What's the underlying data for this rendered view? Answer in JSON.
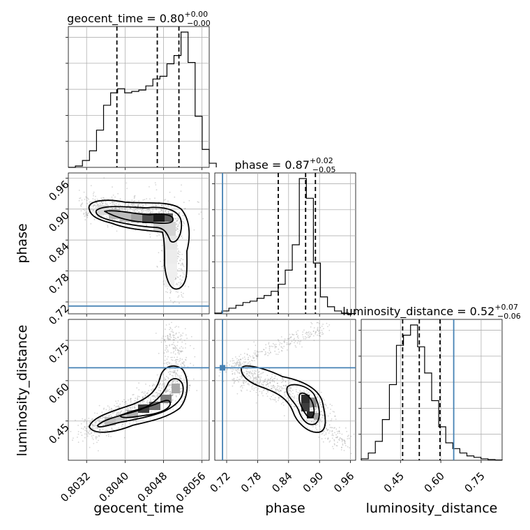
{
  "chart_data": {
    "type": "corner",
    "parameters": [
      "geocent_time",
      "phase",
      "luminosity_distance"
    ],
    "titles": [
      {
        "param": "geocent_time",
        "median": "0.80",
        "plus": "+0.00",
        "minus": "−0.00"
      },
      {
        "param": "phase",
        "median": "0.87",
        "plus": "+0.02",
        "minus": "−0.05"
      },
      {
        "param": "luminosity_distance",
        "median": "0.52",
        "plus": "+0.07",
        "minus": "−0.06"
      }
    ],
    "ranges": {
      "geocent_time": [
        0.80282,
        0.80575
      ],
      "phase": [
        0.697,
        0.97
      ],
      "luminosity_distance": [
        0.304,
        0.828
      ]
    },
    "ticks": {
      "geocent_time": [
        "0.8032",
        "0.8040",
        "0.8048",
        "0.8056"
      ],
      "phase": [
        "0.72",
        "0.78",
        "0.84",
        "0.90",
        "0.96"
      ],
      "luminosity_distance": [
        "0.45",
        "0.60",
        "0.75"
      ]
    },
    "injection": {
      "phase": 0.712,
      "luminosity_distance": 0.648
    },
    "quantiles": {
      "geocent_time": [
        0.80383,
        0.80467,
        0.80512
      ],
      "phase": [
        0.82,
        0.873,
        0.892
      ],
      "luminosity_distance": [
        0.458,
        0.52,
        0.597
      ]
    },
    "hist_geocent_time": {
      "edges_start": 0.80282,
      "bin_width": 0.0001465,
      "counts": [
        0,
        0.01,
        0.05,
        0.12,
        0.27,
        0.45,
        0.54,
        0.57,
        0.54,
        0.55,
        0.56,
        0.59,
        0.64,
        0.66,
        0.75,
        0.81,
        0.98,
        0.76,
        0.37,
        0.13,
        0.03
      ]
    },
    "hist_phase": {
      "edges_start": 0.697,
      "bin_width": 0.01365,
      "counts": [
        0.005,
        0.02,
        0.04,
        0.06,
        0.08,
        0.09,
        0.11,
        0.13,
        0.16,
        0.21,
        0.31,
        0.49,
        0.96,
        0.82,
        0.36,
        0.12,
        0.05,
        0.02,
        0.005,
        0.002
      ]
    },
    "hist_luminosity_distance": {
      "edges_start": 0.304,
      "bin_width": 0.0262,
      "counts": [
        0.01,
        0.05,
        0.13,
        0.28,
        0.52,
        0.79,
        0.86,
        0.93,
        0.78,
        0.6,
        0.41,
        0.23,
        0.12,
        0.08,
        0.05,
        0.03,
        0.02,
        0.01,
        0.005,
        0.002
      ]
    },
    "density_cells": [
      {
        "pair": "geocent_time-phase",
        "x": 0.80342,
        "y": 0.898,
        "w": 0.8
      },
      {
        "pair": "geocent_time-phase",
        "x": 0.80392,
        "y": 0.885,
        "w": 1.0
      },
      {
        "pair": "geocent_time-phase",
        "x": 0.80452,
        "y": 0.88,
        "w": 1.0
      },
      {
        "pair": "geocent_time-phase",
        "x": 0.80492,
        "y": 0.87,
        "w": 1.0
      },
      {
        "pair": "geocent_time-phase",
        "x": 0.80512,
        "y": 0.8,
        "w": 0.7
      },
      {
        "pair": "geocent_time-luminosity_distance",
        "x": 0.80352,
        "y": 0.44,
        "w": 0.9
      },
      {
        "pair": "geocent_time-luminosity_distance",
        "x": 0.80402,
        "y": 0.48,
        "w": 1.0
      },
      {
        "pair": "geocent_time-luminosity_distance",
        "x": 0.80462,
        "y": 0.515,
        "w": 1.0
      },
      {
        "pair": "geocent_time-luminosity_distance",
        "x": 0.80502,
        "y": 0.6,
        "w": 0.8
      },
      {
        "pair": "phase-luminosity_distance",
        "x": 0.76,
        "y": 0.64,
        "w": 0.5
      },
      {
        "pair": "phase-luminosity_distance",
        "x": 0.83,
        "y": 0.57,
        "w": 0.8
      },
      {
        "pair": "phase-luminosity_distance",
        "x": 0.88,
        "y": 0.48,
        "w": 1.0
      },
      {
        "pair": "phase-luminosity_distance",
        "x": 0.93,
        "y": 0.38,
        "w": 0.4
      }
    ]
  }
}
